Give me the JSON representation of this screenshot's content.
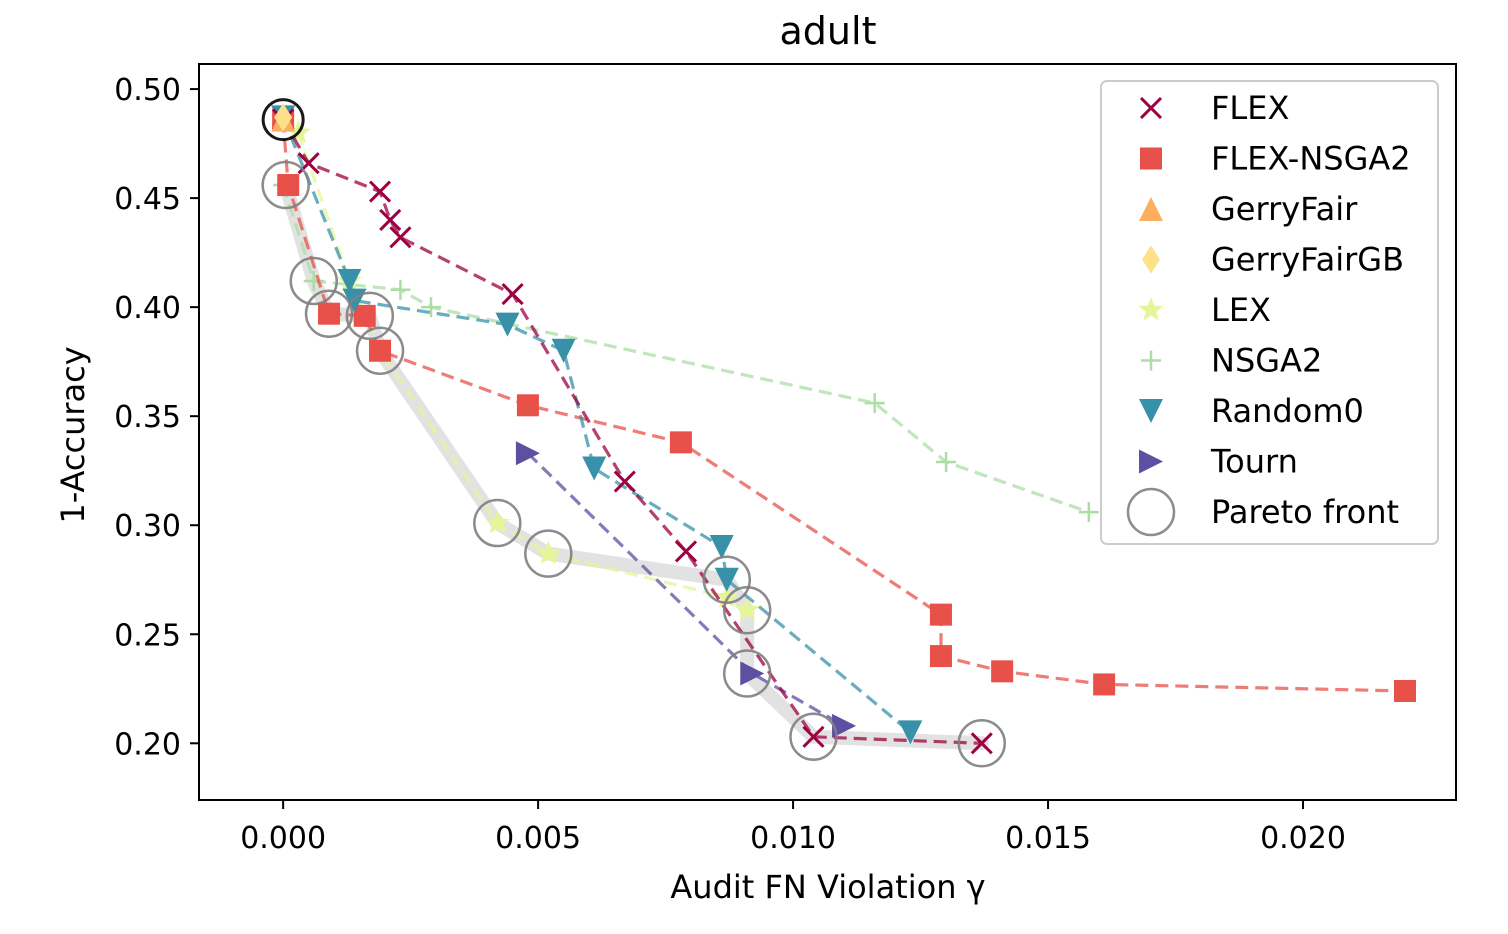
{
  "chart_data": {
    "type": "scatter",
    "title": "adult",
    "xlabel": "Audit FN Violation γ",
    "ylabel": "1-Accuracy",
    "xlim": [
      -0.00165,
      0.023
    ],
    "ylim": [
      0.174,
      0.5115
    ],
    "xticks": [
      0.0,
      0.005,
      0.01,
      0.015,
      0.02
    ],
    "xtick_labels": [
      "0.000",
      "0.005",
      "0.010",
      "0.015",
      "0.020"
    ],
    "yticks": [
      0.2,
      0.25,
      0.3,
      0.35,
      0.4,
      0.45,
      0.5
    ],
    "ytick_labels": [
      "0.20",
      "0.25",
      "0.30",
      "0.35",
      "0.40",
      "0.45",
      "0.50"
    ],
    "grid": false,
    "legend_position": "top-right",
    "pareto_front_line": [
      [
        5e-05,
        0.456
      ],
      [
        0.0006,
        0.412
      ],
      [
        0.0009,
        0.397
      ],
      [
        0.0017,
        0.396
      ],
      [
        0.0019,
        0.38
      ],
      [
        0.0042,
        0.301
      ],
      [
        0.0052,
        0.287
      ],
      [
        0.0087,
        0.275
      ],
      [
        0.0091,
        0.261
      ],
      [
        0.0091,
        0.232
      ],
      [
        0.0104,
        0.203
      ],
      [
        0.0137,
        0.2
      ]
    ],
    "series": [
      {
        "name": "NSGA2",
        "marker": "plus",
        "color": "#abdda4",
        "x": [
          0.0,
          0.0006,
          0.0023,
          0.0029,
          0.0116,
          0.013,
          0.0158
        ],
        "y": [
          0.456,
          0.412,
          0.408,
          0.4,
          0.356,
          0.329,
          0.306
        ]
      },
      {
        "name": "LEX",
        "marker": "star",
        "color": "#e6f598",
        "x": [
          0.0,
          0.0003,
          0.0013,
          0.0019,
          0.0042,
          0.0052,
          0.0087,
          0.0091
        ],
        "y": [
          0.486,
          0.48,
          0.412,
          0.38,
          0.301,
          0.287,
          0.267,
          0.261
        ]
      },
      {
        "name": "FLEX-NSGA2",
        "marker": "square",
        "color": "#e8504a",
        "x": [
          0.0,
          0.0001,
          0.0009,
          0.0016,
          0.0019,
          0.0048,
          0.0078,
          0.0129,
          0.0129,
          0.0141,
          0.0161,
          0.022
        ],
        "y": [
          0.486,
          0.456,
          0.397,
          0.396,
          0.38,
          0.355,
          0.338,
          0.259,
          0.24,
          0.233,
          0.227,
          0.224
        ]
      },
      {
        "name": "Random0",
        "marker": "triangle-down",
        "color": "#3891a8",
        "x": [
          0.0,
          0.0013,
          0.0014,
          0.0044,
          0.0055,
          0.0061,
          0.0086,
          0.0087,
          0.0123
        ],
        "y": [
          0.487,
          0.412,
          0.403,
          0.392,
          0.38,
          0.326,
          0.29,
          0.275,
          0.205
        ]
      },
      {
        "name": "Tourn",
        "marker": "triangle-right",
        "color": "#5e4fa2",
        "x": [
          0.0048,
          0.0092,
          0.011
        ],
        "y": [
          0.333,
          0.232,
          0.208
        ]
      },
      {
        "name": "FLEX",
        "marker": "x",
        "color": "#9e0142",
        "x": [
          0.0,
          0.0005,
          0.0019,
          0.0021,
          0.0023,
          0.0045,
          0.0067,
          0.0079,
          0.0104,
          0.0137
        ],
        "y": [
          0.486,
          0.466,
          0.453,
          0.44,
          0.432,
          0.406,
          0.32,
          0.288,
          0.203,
          0.2
        ]
      },
      {
        "name": "GerryFair",
        "marker": "triangle-up",
        "color": "#fdae61",
        "x": [
          0.0
        ],
        "y": [
          0.486
        ]
      },
      {
        "name": "GerryFairGB",
        "marker": "diamond",
        "color": "#fee08b",
        "x": [
          0.0
        ],
        "y": [
          0.487
        ]
      }
    ],
    "pareto_front_points": {
      "name": "Pareto front",
      "marker": "circle-open",
      "color": "#808080",
      "x": [
        0.0,
        5e-05,
        0.0006,
        0.0009,
        0.0017,
        0.0019,
        0.0042,
        0.0052,
        0.0087,
        0.0091,
        0.0091,
        0.0104,
        0.0137
      ],
      "y": [
        0.486,
        0.456,
        0.412,
        0.397,
        0.396,
        0.38,
        0.301,
        0.287,
        0.275,
        0.261,
        0.232,
        0.203,
        0.2
      ]
    },
    "legend": [
      {
        "label": "FLEX",
        "marker": "x",
        "color": "#9e0142"
      },
      {
        "label": "FLEX-NSGA2",
        "marker": "square",
        "color": "#e8504a"
      },
      {
        "label": "GerryFair",
        "marker": "triangle-up",
        "color": "#fdae61"
      },
      {
        "label": "GerryFairGB",
        "marker": "diamond",
        "color": "#fee08b"
      },
      {
        "label": "LEX",
        "marker": "star",
        "color": "#e6f598"
      },
      {
        "label": "NSGA2",
        "marker": "plus",
        "color": "#abdda4"
      },
      {
        "label": "Random0",
        "marker": "triangle-down",
        "color": "#3891a8"
      },
      {
        "label": "Tourn",
        "marker": "triangle-right",
        "color": "#5e4fa2"
      },
      {
        "label": "Pareto front",
        "marker": "circle-open",
        "color": "#808080"
      }
    ]
  }
}
